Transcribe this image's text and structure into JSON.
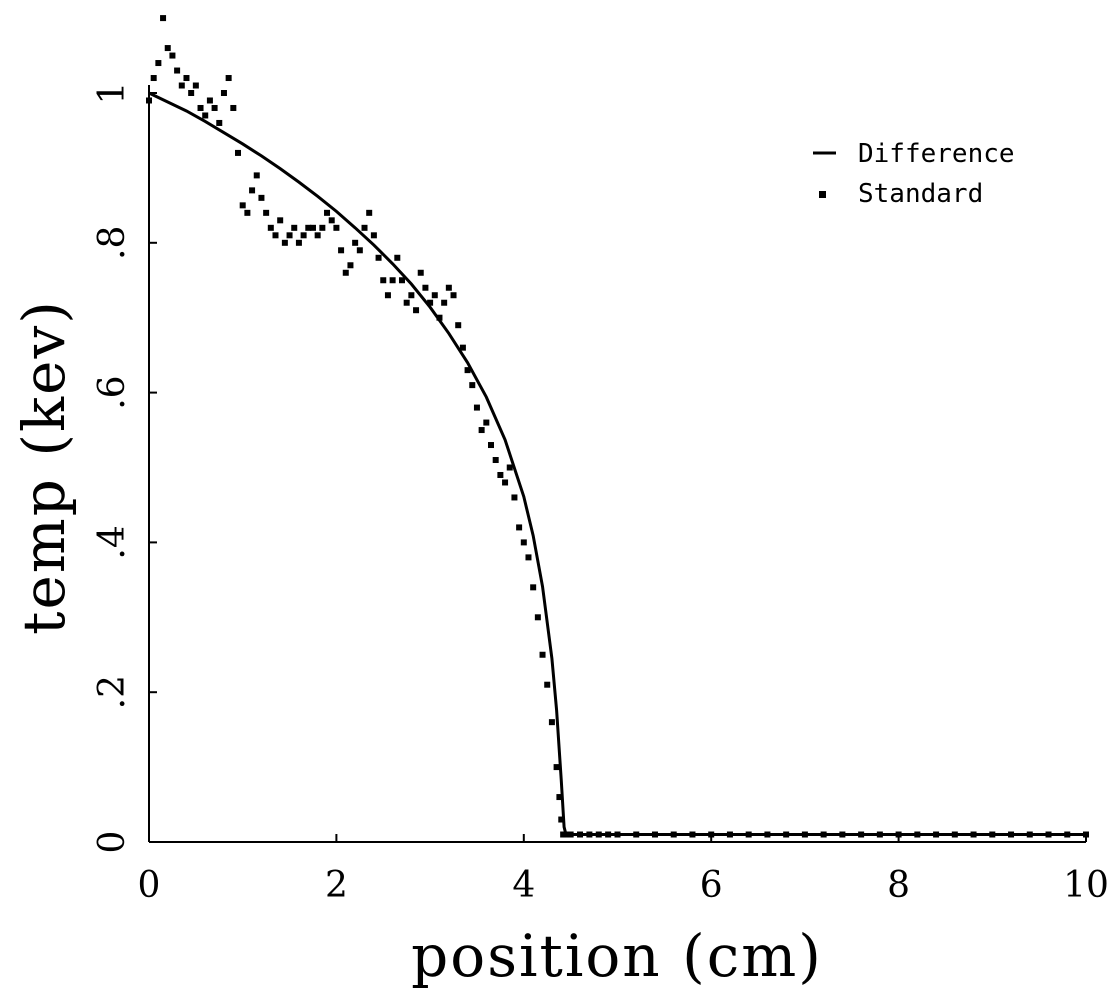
{
  "chart_data": {
    "type": "scatter",
    "title": "",
    "xlabel": "position (cm)",
    "ylabel": "temp (kev)",
    "xlim": [
      0,
      10
    ],
    "ylim": [
      0,
      1.1
    ],
    "x_ticks": [
      0,
      2,
      4,
      6,
      8,
      10
    ],
    "x_tick_labels": [
      "0",
      "2",
      "4",
      "6",
      "8",
      "10"
    ],
    "y_ticks": [
      0,
      0.2,
      0.4,
      0.6,
      0.8,
      1.0
    ],
    "y_tick_labels": [
      "0",
      ".2",
      ".4",
      ".6",
      ".8",
      "1"
    ],
    "legend_position": "top-right",
    "grid": false,
    "series": [
      {
        "name": "Difference",
        "style": "line",
        "x": [
          0.0,
          0.2,
          0.4,
          0.6,
          0.8,
          1.0,
          1.2,
          1.4,
          1.6,
          1.8,
          2.0,
          2.2,
          2.4,
          2.6,
          2.8,
          3.0,
          3.2,
          3.4,
          3.6,
          3.8,
          4.0,
          4.1,
          4.2,
          4.3,
          4.35,
          4.4,
          4.43,
          4.45,
          4.5,
          5.0,
          6.0,
          7.0,
          8.0,
          9.0,
          10.0
        ],
        "y": [
          1.0,
          0.988,
          0.976,
          0.962,
          0.947,
          0.932,
          0.916,
          0.899,
          0.881,
          0.862,
          0.842,
          0.82,
          0.797,
          0.772,
          0.745,
          0.714,
          0.679,
          0.64,
          0.594,
          0.537,
          0.461,
          0.409,
          0.341,
          0.245,
          0.176,
          0.082,
          0.02,
          0.01,
          0.01,
          0.01,
          0.01,
          0.01,
          0.01,
          0.01,
          0.01
        ]
      },
      {
        "name": "Standard",
        "style": "points",
        "x": [
          0.0,
          0.05,
          0.1,
          0.15,
          0.2,
          0.25,
          0.3,
          0.35,
          0.4,
          0.45,
          0.5,
          0.55,
          0.6,
          0.65,
          0.7,
          0.75,
          0.8,
          0.85,
          0.9,
          0.95,
          1.0,
          1.05,
          1.1,
          1.15,
          1.2,
          1.25,
          1.3,
          1.35,
          1.4,
          1.45,
          1.5,
          1.55,
          1.6,
          1.65,
          1.7,
          1.75,
          1.8,
          1.85,
          1.9,
          1.95,
          2.0,
          2.05,
          2.1,
          2.15,
          2.2,
          2.25,
          2.3,
          2.35,
          2.4,
          2.45,
          2.5,
          2.55,
          2.6,
          2.65,
          2.7,
          2.75,
          2.8,
          2.85,
          2.9,
          2.95,
          3.0,
          3.05,
          3.1,
          3.15,
          3.2,
          3.25,
          3.3,
          3.35,
          3.4,
          3.45,
          3.5,
          3.55,
          3.6,
          3.65,
          3.7,
          3.75,
          3.8,
          3.85,
          3.9,
          3.95,
          4.0,
          4.05,
          4.1,
          4.15,
          4.2,
          4.25,
          4.3,
          4.35,
          4.38,
          4.4,
          4.42,
          4.45,
          4.5,
          4.6,
          4.7,
          4.8,
          4.9,
          5.0,
          5.2,
          5.4,
          5.6,
          5.8,
          6.0,
          6.2,
          6.4,
          6.6,
          6.8,
          7.0,
          7.2,
          7.4,
          7.6,
          7.8,
          8.0,
          8.2,
          8.4,
          8.6,
          8.8,
          9.0,
          9.2,
          9.4,
          9.6,
          9.8,
          10.0
        ],
        "y": [
          0.99,
          1.02,
          1.04,
          1.1,
          1.06,
          1.05,
          1.03,
          1.01,
          1.02,
          1.0,
          1.01,
          0.98,
          0.97,
          0.99,
          0.98,
          0.96,
          1.0,
          1.02,
          0.98,
          0.92,
          0.85,
          0.84,
          0.87,
          0.89,
          0.86,
          0.84,
          0.82,
          0.81,
          0.83,
          0.8,
          0.81,
          0.82,
          0.8,
          0.81,
          0.82,
          0.82,
          0.81,
          0.82,
          0.84,
          0.83,
          0.82,
          0.79,
          0.76,
          0.77,
          0.8,
          0.79,
          0.82,
          0.84,
          0.81,
          0.78,
          0.75,
          0.73,
          0.75,
          0.78,
          0.75,
          0.72,
          0.73,
          0.71,
          0.76,
          0.74,
          0.72,
          0.73,
          0.7,
          0.72,
          0.74,
          0.73,
          0.69,
          0.66,
          0.63,
          0.61,
          0.58,
          0.55,
          0.56,
          0.53,
          0.51,
          0.49,
          0.48,
          0.5,
          0.46,
          0.42,
          0.4,
          0.38,
          0.34,
          0.3,
          0.25,
          0.21,
          0.16,
          0.1,
          0.06,
          0.03,
          0.01,
          0.01,
          0.01,
          0.01,
          0.01,
          0.01,
          0.01,
          0.01,
          0.01,
          0.01,
          0.01,
          0.01,
          0.01,
          0.01,
          0.01,
          0.01,
          0.01,
          0.01,
          0.01,
          0.01,
          0.01,
          0.01,
          0.01,
          0.01,
          0.01,
          0.01,
          0.01,
          0.01,
          0.01,
          0.01,
          0.01,
          0.01,
          0.01
        ]
      }
    ]
  }
}
